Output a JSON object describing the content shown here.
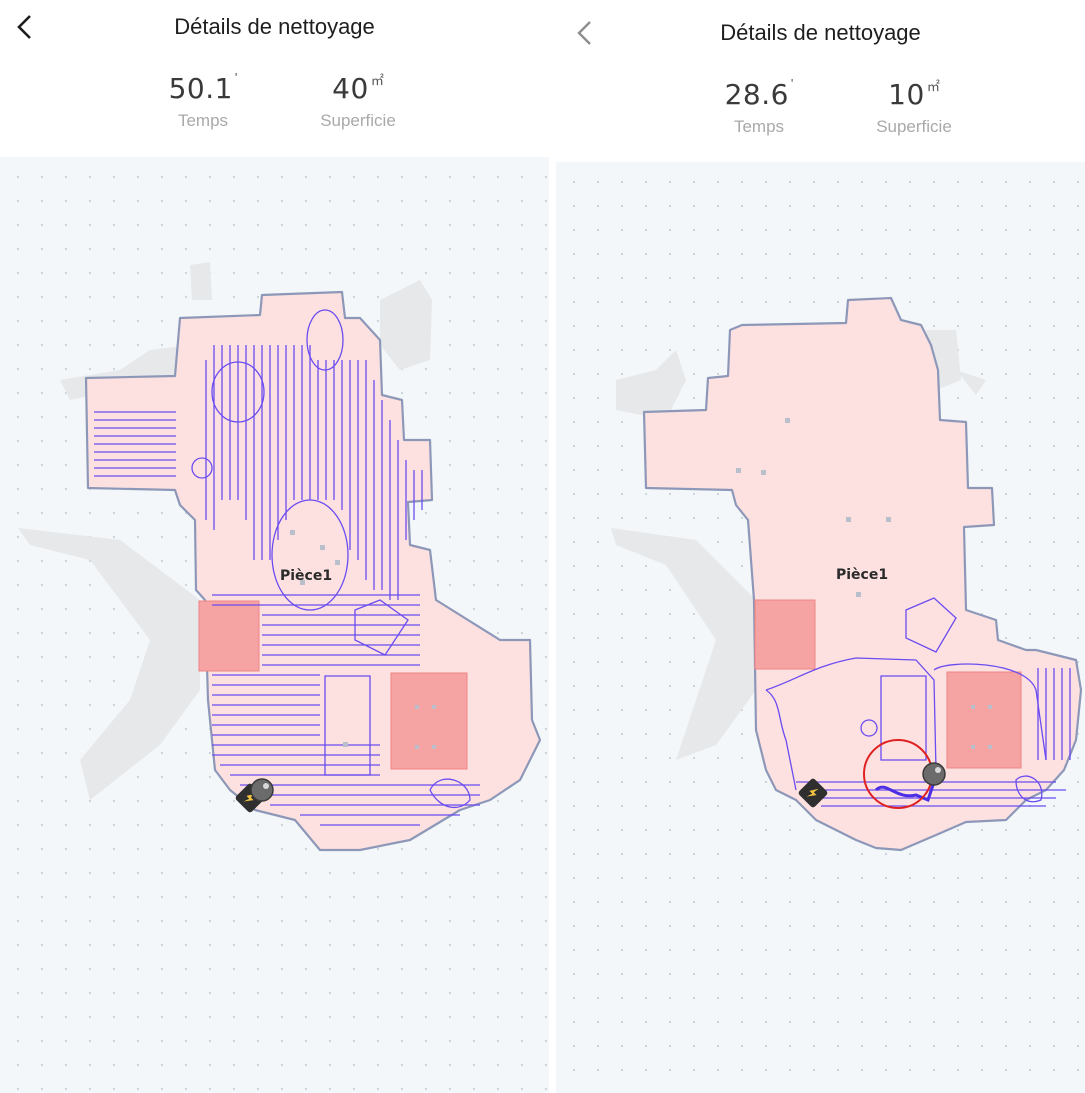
{
  "left": {
    "title": "Détails de nettoyage",
    "time": {
      "value": "50.1",
      "unit": "'",
      "label": "Temps"
    },
    "area": {
      "value": "40",
      "unit": "㎡",
      "label": "Superficie"
    },
    "room_label": "Pièce1",
    "back_icon": "chevron-left-icon"
  },
  "right": {
    "title": "Détails de nettoyage",
    "time": {
      "value": "28.6",
      "unit": "'",
      "label": "Temps"
    },
    "area": {
      "value": "10",
      "unit": "㎡",
      "label": "Superficie"
    },
    "room_label": "Pièce1",
    "back_icon": "chevron-left-icon"
  },
  "colors": {
    "room_fill": "#fde1e1",
    "room_border": "#8d98b8",
    "path": "#6a4cf0",
    "no_go_zone": "#f6a3a3",
    "obstacle": "#e6e8ea",
    "background": "#f3f7fa",
    "highlight_circle": "#e02020"
  }
}
